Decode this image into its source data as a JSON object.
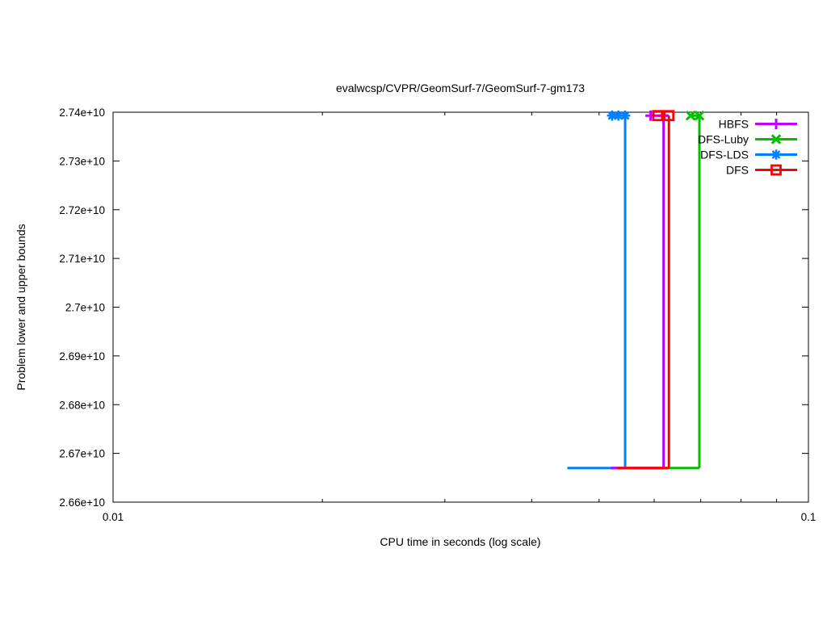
{
  "chart_data": {
    "type": "line",
    "title": "evalwcsp/CVPR/GeomSurf-7/GeomSurf-7-gm173",
    "xlabel": "CPU time in seconds (log scale)",
    "ylabel": "Problem lower and upper bounds",
    "x_scale": "log",
    "xlim": [
      0.01,
      0.1
    ],
    "ylim": [
      26600000000,
      27400000000
    ],
    "grid": false,
    "legend_position": "top-right-inside",
    "x_major_ticks": [
      {
        "value": 0.01,
        "label": "0.01"
      },
      {
        "value": 0.1,
        "label": "0.1"
      }
    ],
    "x_minor_ticks": [
      0.02,
      0.03,
      0.04,
      0.05,
      0.06,
      0.07,
      0.08,
      0.09
    ],
    "y_ticks": [
      {
        "value": 26600000000,
        "label": "2.66e+10"
      },
      {
        "value": 26700000000,
        "label": "2.67e+10"
      },
      {
        "value": 26800000000,
        "label": "2.68e+10"
      },
      {
        "value": 26900000000,
        "label": "2.69e+10"
      },
      {
        "value": 27000000000,
        "label": "2.7e+10"
      },
      {
        "value": 27100000000,
        "label": "2.71e+10"
      },
      {
        "value": 27200000000,
        "label": "2.72e+10"
      },
      {
        "value": 27300000000,
        "label": "2.73e+10"
      },
      {
        "value": 27400000000,
        "label": "2.74e+10"
      }
    ],
    "lower_bound": 26670000000,
    "optimum": 27393000000,
    "series": [
      {
        "name": "HBFS",
        "color": "#c000ff",
        "marker": "plus",
        "lb_start_time": 0.052,
        "solve_time": 0.0619,
        "ub_marker_times": [
          0.0593,
          0.0619
        ]
      },
      {
        "name": "DFS-Luby",
        "color": "#00c000",
        "marker": "cross",
        "lb_start_time": 0.0531,
        "solve_time": 0.0697,
        "ub_marker_times": [
          0.0677,
          0.0697
        ]
      },
      {
        "name": "DFS-LDS",
        "color": "#0080ff",
        "marker": "asterisk",
        "lb_start_time": 0.045,
        "solve_time": 0.0545,
        "ub_marker_times": [
          0.0522,
          0.0533,
          0.0545
        ]
      },
      {
        "name": "DFS",
        "color": "#ff0000",
        "marker": "square",
        "lb_start_time": 0.0531,
        "solve_time": 0.063,
        "ub_marker_times": [
          0.0607,
          0.063
        ]
      }
    ]
  }
}
